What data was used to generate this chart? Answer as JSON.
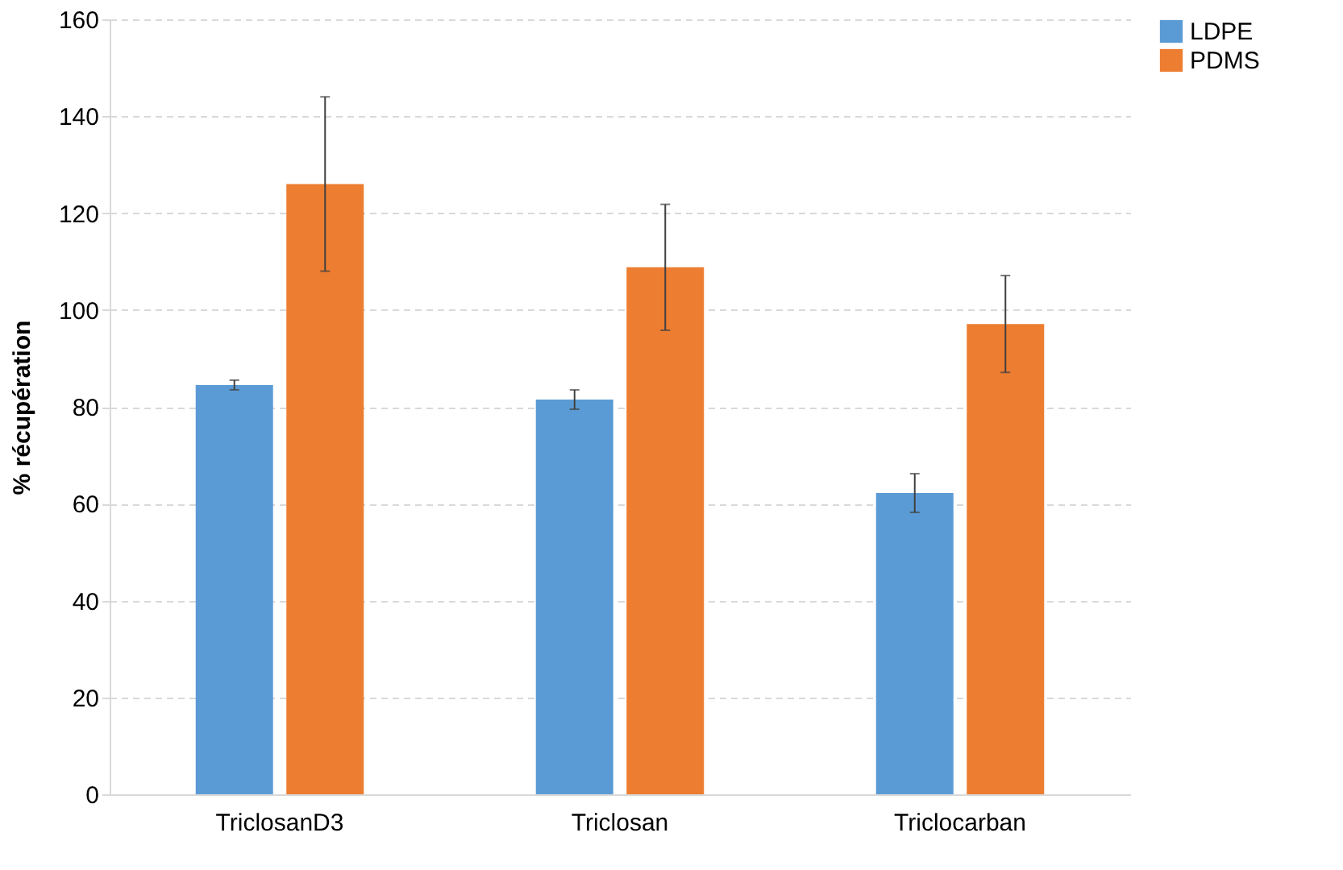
{
  "chart_data": {
    "type": "bar",
    "ylabel": "% récupération",
    "categories": [
      "TriclosanD3",
      "Triclosan",
      "Triclocarban"
    ],
    "series": [
      {
        "name": "LDPE",
        "color": "#5b9bd5",
        "values": [
          84.5,
          81.5,
          62.2
        ],
        "errors": [
          1,
          2,
          4
        ]
      },
      {
        "name": "PDMS",
        "color": "#ed7d31",
        "values": [
          126,
          108.8,
          97.1
        ],
        "errors": [
          18,
          13,
          10
        ]
      }
    ],
    "ylim": [
      0,
      160
    ],
    "yticks": [
      0,
      20,
      40,
      60,
      80,
      100,
      120,
      140,
      160
    ],
    "grid": "y",
    "legend": "right"
  }
}
